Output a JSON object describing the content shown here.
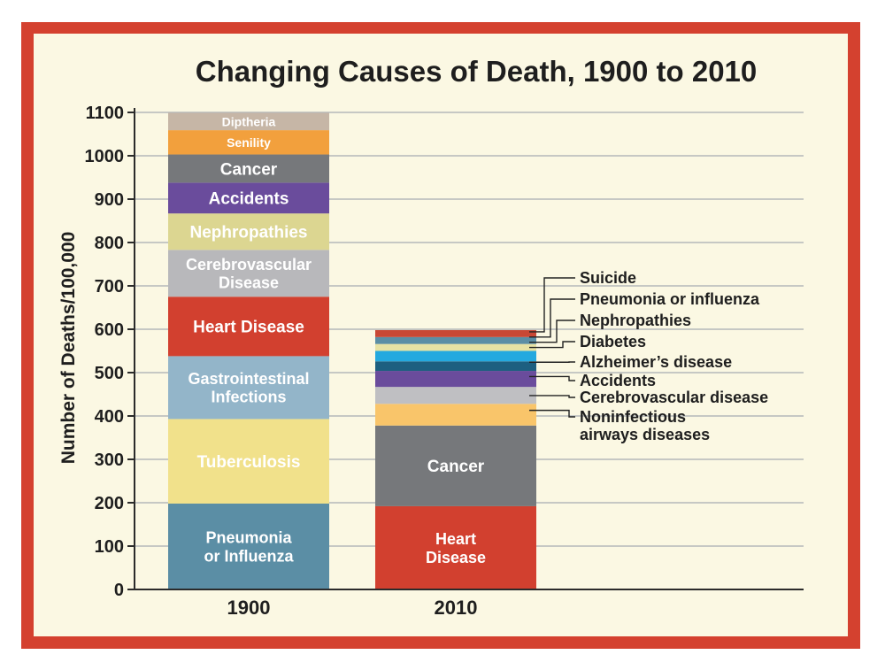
{
  "chart_data": {
    "type": "bar",
    "stacked": true,
    "title": "Changing Causes of Death, 1900 to 2010",
    "xlabel": "",
    "ylabel": "Number of Deaths/100,000",
    "ylim": [
      0,
      1100
    ],
    "yticks": [
      "0",
      "100",
      "200",
      "300",
      "400",
      "500",
      "600",
      "700",
      "800",
      "900",
      "1000",
      "1100"
    ],
    "grid": true,
    "categories": [
      "1900",
      "2010"
    ],
    "bars": [
      {
        "category": "1900",
        "segments": [
          {
            "name": "Pneumonia or Influenza",
            "lines": [
              "Pneumonia",
              "or Influenza"
            ],
            "start": 0,
            "end": 198,
            "color": "#5b8ea5",
            "text_color": "#ffffff"
          },
          {
            "name": "Tuberculosis",
            "lines": [
              "Tuberculosis"
            ],
            "start": 198,
            "end": 393,
            "color": "#f1e18b",
            "text_color": "#ffffff"
          },
          {
            "name": "Gastrointestinal Infections",
            "lines": [
              "Gastrointestinal",
              "Infections"
            ],
            "start": 393,
            "end": 538,
            "color": "#93b5c9",
            "text_color": "#ffffff"
          },
          {
            "name": "Heart Disease",
            "lines": [
              "Heart Disease"
            ],
            "start": 538,
            "end": 675,
            "color": "#d2402f",
            "text_color": "#ffffff"
          },
          {
            "name": "Cerebrovascular Disease",
            "lines": [
              "Cerebrovascular",
              "Disease"
            ],
            "start": 675,
            "end": 783,
            "color": "#b8b8bb",
            "text_color": "#ffffff"
          },
          {
            "name": "Nephropathies",
            "lines": [
              "Nephropathies"
            ],
            "start": 783,
            "end": 867,
            "color": "#dcd691",
            "text_color": "#ffffff"
          },
          {
            "name": "Accidents",
            "lines": [
              "Accidents"
            ],
            "start": 867,
            "end": 938,
            "color": "#6a4c9c",
            "text_color": "#ffffff"
          },
          {
            "name": "Cancer",
            "lines": [
              "Cancer"
            ],
            "start": 938,
            "end": 1003,
            "color": "#76787b",
            "text_color": "#ffffff"
          },
          {
            "name": "Senility",
            "lines": [
              "Senility"
            ],
            "start": 1003,
            "end": 1059,
            "color": "#f2a03d",
            "text_color": "#ffffff"
          },
          {
            "name": "Diptheria",
            "lines": [
              "Diptheria"
            ],
            "start": 1059,
            "end": 1099,
            "color": "#c6b6a6",
            "text_color": "#ffffff"
          }
        ]
      },
      {
        "category": "2010",
        "segments": [
          {
            "name": "Heart Disease",
            "lines": [
              "Heart",
              "Disease"
            ],
            "start": 0,
            "end": 192,
            "color": "#d2402f",
            "text_color": "#ffffff"
          },
          {
            "name": "Cancer",
            "lines": [
              "Cancer"
            ],
            "start": 192,
            "end": 378,
            "color": "#76787b",
            "text_color": "#ffffff"
          },
          {
            "name": "Noninfectious airways diseases",
            "lines": [],
            "start": 378,
            "end": 428,
            "color": "#f9c56a"
          },
          {
            "name": "Cerebrovascular disease",
            "lines": [],
            "start": 428,
            "end": 467,
            "color": "#bfbfc2"
          },
          {
            "name": "Accidents",
            "lines": [],
            "start": 467,
            "end": 504,
            "color": "#6a4c9c"
          },
          {
            "name": "Alzheimer's disease",
            "lines": [],
            "start": 504,
            "end": 526,
            "color": "#1d5f80"
          },
          {
            "name": "Diabetes",
            "lines": [],
            "start": 526,
            "end": 550,
            "color": "#24a9df"
          },
          {
            "name": "Nephropathies",
            "lines": [],
            "start": 550,
            "end": 566,
            "color": "#e7e2a4"
          },
          {
            "name": "Pneumonia or influenza",
            "lines": [],
            "start": 566,
            "end": 582,
            "color": "#5b8ea5"
          },
          {
            "name": "Suicide",
            "lines": [],
            "start": 582,
            "end": 598,
            "color": "#c94835"
          }
        ]
      }
    ],
    "callouts_2010": [
      {
        "lines": [
          "Suicide"
        ],
        "value": 594
      },
      {
        "lines": [
          "Pneumonia or influenza"
        ],
        "value": 582
      },
      {
        "lines": [
          "Nephropathies"
        ],
        "value": 570
      },
      {
        "lines": [
          "Diabetes"
        ],
        "value": 558
      },
      {
        "lines": [
          "Alzheimer’s disease"
        ],
        "value": 524
      },
      {
        "lines": [
          "Accidents"
        ],
        "value": 491
      },
      {
        "lines": [
          "Cerebrovascular disease"
        ],
        "value": 447
      },
      {
        "lines": [
          "Noninfectious",
          "airways diseases"
        ],
        "value": 413
      }
    ],
    "colors": {
      "frame": "#d4412f",
      "background": "#fbf8e3",
      "gridline": "#b4b8ba",
      "axis": "#2b2b2b",
      "text": "#1e1e1e"
    }
  }
}
